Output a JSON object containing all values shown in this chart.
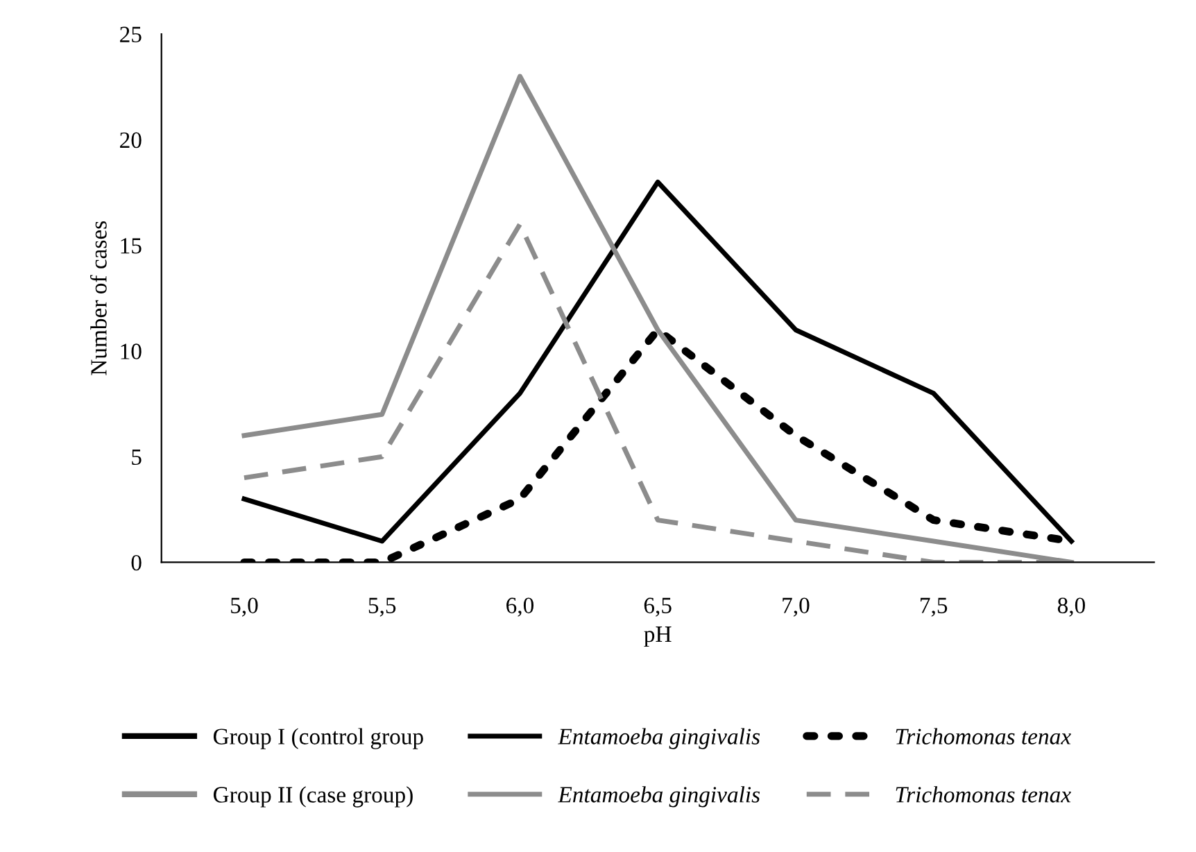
{
  "chart_data": {
    "type": "line",
    "xlabel": "pH",
    "ylabel": "Number of cases",
    "categories": [
      "5,0",
      "5,5",
      "6,0",
      "6,5",
      "7,0",
      "7,5",
      "8,0"
    ],
    "series": [
      {
        "name": "Entamoeba gingivalis",
        "color": "#000000",
        "line_style": "solid",
        "values": [
          3,
          1,
          8,
          18,
          11,
          8,
          1
        ]
      },
      {
        "name": "Trichomonas tenax",
        "color": "#000000",
        "line_style": "dotted",
        "values": [
          0,
          0,
          3,
          11,
          6,
          2,
          1
        ]
      },
      {
        "name": "Entamoeba gingivalis",
        "color": "#8c8c8c",
        "line_style": "solid",
        "values": [
          6,
          7,
          23,
          11,
          2,
          1,
          0
        ]
      },
      {
        "name": "Trichomonas tenax",
        "color": "#8c8c8c",
        "line_style": "dashed",
        "values": [
          4,
          5,
          16,
          2,
          1,
          0,
          0
        ]
      }
    ],
    "annotations": [
      "Group I (control group",
      "Group II (case group)"
    ],
    "ylim": [
      0,
      25
    ],
    "yticks": [
      0,
      5,
      10,
      15,
      20,
      25
    ],
    "grid": false,
    "legend": "bottom",
    "marker": "none"
  }
}
